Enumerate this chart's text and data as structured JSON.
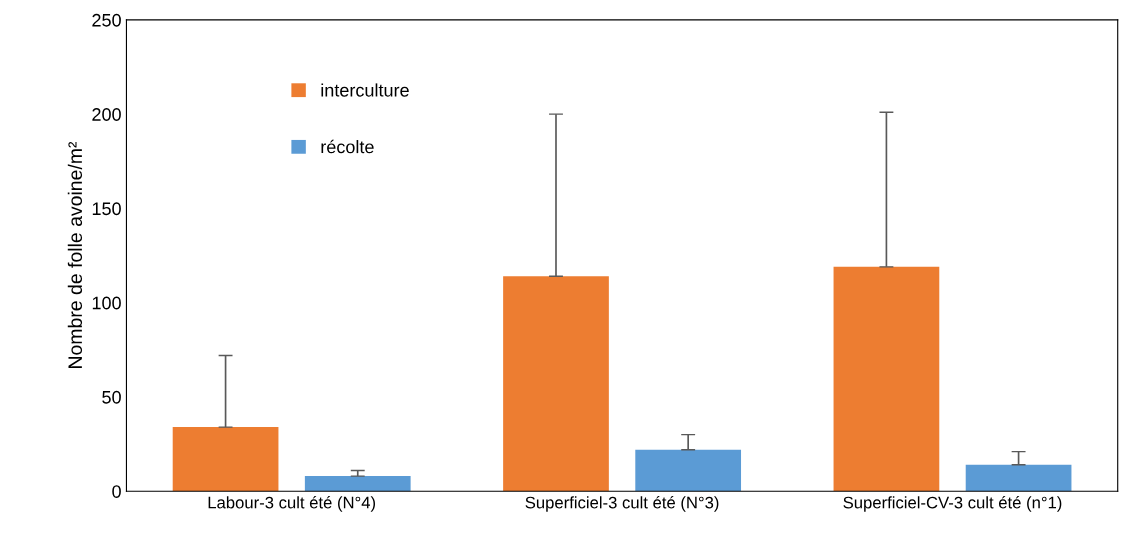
{
  "chart_data": {
    "type": "bar",
    "ylabel": "Nombre de folle avoine/m²",
    "categories": [
      "Labour-3 cult été (N°4)",
      "Superficiel-3 cult été (N°3)",
      "Superficiel-CV-3 cult été (n°1)"
    ],
    "series": [
      {
        "name": "interculture",
        "color": "#ed7d31",
        "values": [
          34,
          114,
          119
        ],
        "errors": [
          [
            34,
            72
          ],
          [
            114,
            200
          ],
          [
            119,
            201
          ]
        ]
      },
      {
        "name": "récolte",
        "color": "#5b9bd5",
        "values": [
          8,
          22,
          14
        ],
        "errors": [
          [
            8,
            11
          ],
          [
            22,
            30
          ],
          [
            14,
            21
          ]
        ]
      }
    ],
    "ylim": [
      0,
      250
    ],
    "yticks": [
      0,
      50,
      100,
      150,
      200,
      250
    ],
    "grid": false,
    "legend": "top left"
  }
}
